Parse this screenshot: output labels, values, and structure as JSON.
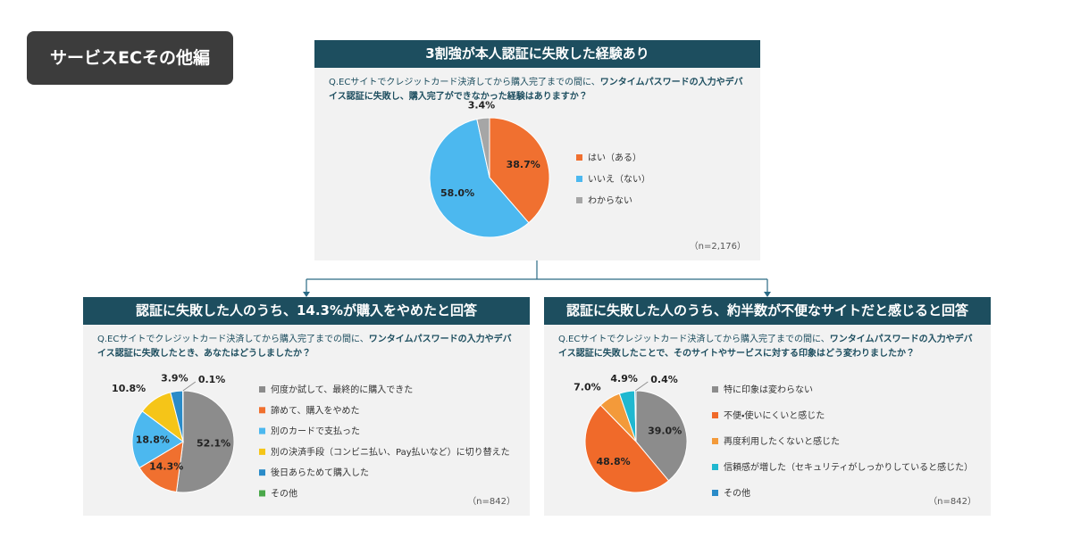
{
  "badge": "サービスECその他編",
  "chart_data": [
    {
      "type": "pie",
      "title": "3割強が本人認証に失敗した経験あり",
      "question": [
        "Q.ECサイトでクレジットカード決済してから購入完了までの間に、",
        "ワンタイムパスワードの入力やデバイス認証に失敗し、購入完了ができなかった経験はありますか？"
      ],
      "categories": [
        "はい（ある）",
        "いいえ（ない）",
        "わからない"
      ],
      "values": [
        38.7,
        58.0,
        3.4
      ],
      "value_labels": [
        "38.7%",
        "58.0%",
        "3.4%"
      ],
      "colors": [
        "#f07030",
        "#4cb8ef",
        "#a6a6a6"
      ],
      "note": "（n=2,176）"
    },
    {
      "type": "pie",
      "title": "認証に失敗した人のうち、14.3%が購入をやめたと回答",
      "question": [
        "Q.ECサイトでクレジットカード決済してから購入完了までの間に、",
        "ワンタイムパスワードの入力やデバイス認証に失敗したとき、あなたはどうしましたか？"
      ],
      "categories": [
        "何度か試して、最終的に購入できた",
        "諦めて、購入をやめた",
        "別のカードで支払った",
        "別の決済手段（コンビニ払い、Pay払いなど）に切り替えた",
        "後日あらためて購入した",
        "その他"
      ],
      "values": [
        52.1,
        14.3,
        18.8,
        10.8,
        3.9,
        0.1
      ],
      "value_labels": [
        "52.1%",
        "14.3%",
        "18.8%",
        "10.8%",
        "3.9%",
        "0.1%"
      ],
      "colors": [
        "#8c8c8c",
        "#f0702f",
        "#4cb8ef",
        "#f5c518",
        "#2a8bc8",
        "#4aa84a"
      ],
      "note": "（n=842）"
    },
    {
      "type": "pie",
      "title": "認証に失敗した人のうち、約半数が不便なサイトだと感じると回答",
      "question": [
        "Q.ECサイトでクレジットカード決済してから購入完了までの間に、",
        "ワンタイムパスワードの入力やデバイス認証に失敗したことで、そのサイトやサービスに対する印象はどう変わりましたか？"
      ],
      "categories": [
        "特に印象は変わらない",
        "不便・使いにくいと感じた",
        "再度利用したくないと感じた",
        "信頼感が増した（セキュリティがしっかりしていると感じた）",
        "その他"
      ],
      "values": [
        39.0,
        48.8,
        7.0,
        4.9,
        0.4
      ],
      "value_labels": [
        "39.0%",
        "48.8%",
        "7.0%",
        "4.9%",
        "0.4%"
      ],
      "colors": [
        "#8c8c8c",
        "#f06a2a",
        "#f39a3a",
        "#20b8d0",
        "#2a8bc8"
      ],
      "note": "（n=842）"
    }
  ]
}
